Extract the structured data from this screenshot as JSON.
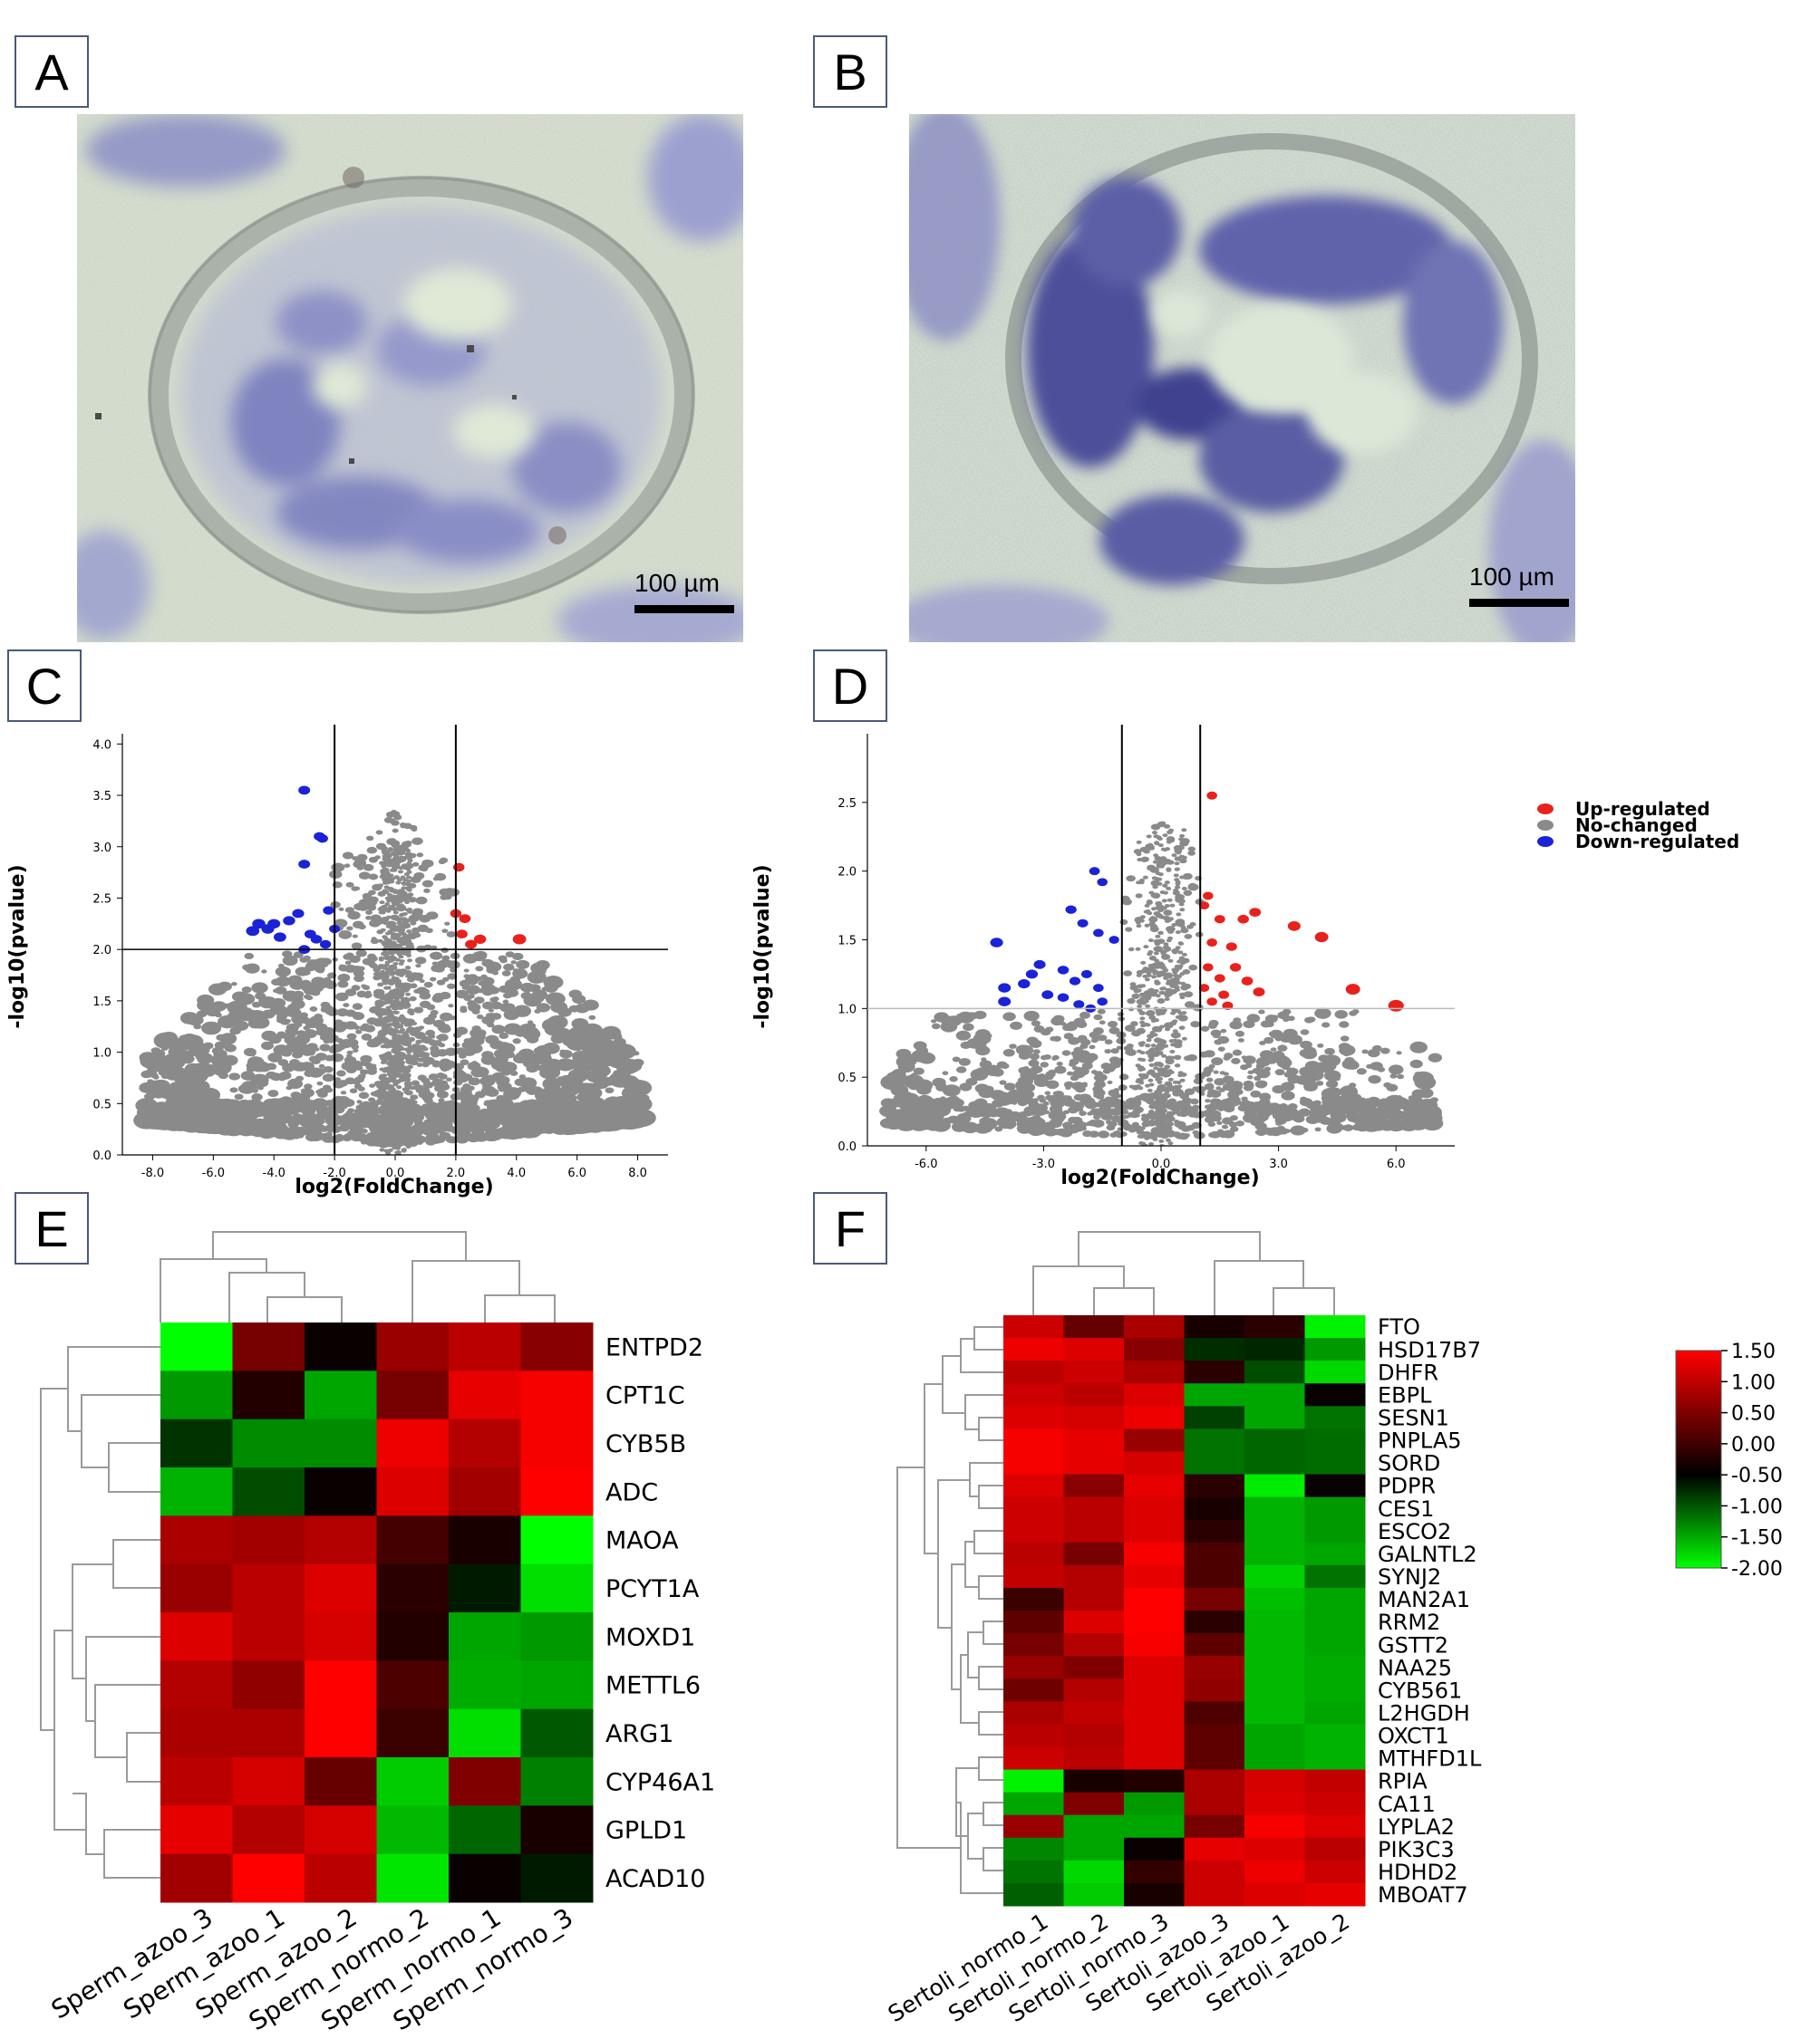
{
  "panels": {
    "A": {
      "label": "A",
      "scale_bar": "100 µm"
    },
    "B": {
      "label": "B",
      "scale_bar": "100 µm"
    },
    "C": {
      "label": "C"
    },
    "D": {
      "label": "D"
    },
    "E": {
      "label": "E"
    },
    "F": {
      "label": "F"
    }
  },
  "colors": {
    "up": "#e8211d",
    "nochange": "#8a8a8a",
    "down": "#1a23d6",
    "heat_high": "#ff0000",
    "heat_mid": "#000000",
    "heat_low": "#00ff00"
  },
  "chart_data": [
    {
      "id": "C",
      "type": "scatter",
      "xlabel": "log2(FoldChange)",
      "ylabel": "-log10(pvalue)",
      "xlim": [
        -9,
        9
      ],
      "ylim": [
        0,
        4.1
      ],
      "x_ticks": [
        -8,
        -6,
        -4,
        -2,
        0,
        2,
        4,
        6,
        8
      ],
      "x_tick_labels": [
        "-8.0",
        "-6.0",
        "-4.0",
        "-2.0",
        "0.0",
        "2.0",
        "4.0",
        "6.0",
        "8.0"
      ],
      "y_ticks": [
        0,
        0.5,
        1,
        1.5,
        2,
        2.5,
        3,
        3.5,
        4
      ],
      "y_tick_labels": [
        "0.0",
        "0.5",
        "1.0",
        "1.5",
        "2.0",
        "2.5",
        "3.0",
        "3.5",
        "4.0"
      ],
      "thresholds": {
        "x": [
          -2,
          2
        ],
        "y": 2.0
      },
      "up_points": [
        [
          2.1,
          2.8
        ],
        [
          2.0,
          2.35
        ],
        [
          2.3,
          2.3
        ],
        [
          2.8,
          2.1
        ],
        [
          2.5,
          2.05
        ],
        [
          4.1,
          2.1
        ],
        [
          2.2,
          2.15
        ]
      ],
      "down_points": [
        [
          -3.0,
          3.55
        ],
        [
          -2.5,
          3.1
        ],
        [
          -2.4,
          3.08
        ],
        [
          -3.0,
          2.83
        ],
        [
          -4.5,
          2.25
        ],
        [
          -4.7,
          2.18
        ],
        [
          -4.2,
          2.2
        ],
        [
          -3.8,
          2.12
        ],
        [
          -3.5,
          2.28
        ],
        [
          -3.2,
          2.35
        ],
        [
          -2.8,
          2.15
        ],
        [
          -2.2,
          2.38
        ],
        [
          -2.0,
          2.2
        ],
        [
          -3.0,
          2.0
        ],
        [
          -2.6,
          2.1
        ],
        [
          -2.3,
          2.05
        ],
        [
          -4.0,
          2.25
        ]
      ]
    },
    {
      "id": "D",
      "type": "scatter",
      "xlabel": "log2(FoldChange)",
      "ylabel": "-log10(pvalue)",
      "xlim": [
        -7.5,
        7.5
      ],
      "ylim": [
        0,
        3.0
      ],
      "x_ticks": [
        -6,
        -3,
        0,
        3,
        6
      ],
      "x_tick_labels": [
        "-6.0",
        "-3.0",
        "0.0",
        "3.0",
        "6.0"
      ],
      "y_ticks": [
        0,
        0.5,
        1,
        1.5,
        2,
        2.5
      ],
      "y_tick_labels": [
        "0.0",
        "0.5",
        "1.0",
        "1.5",
        "2.0",
        "2.5"
      ],
      "thresholds": {
        "x": [
          -1,
          1
        ],
        "y": 1.0
      },
      "legend": [
        "Up-regulated",
        "No-changed",
        "Down-regulated"
      ],
      "up_points": [
        [
          1.3,
          2.55
        ],
        [
          1.2,
          1.82
        ],
        [
          1.1,
          1.75
        ],
        [
          1.5,
          1.65
        ],
        [
          2.1,
          1.65
        ],
        [
          2.4,
          1.7
        ],
        [
          3.4,
          1.6
        ],
        [
          4.1,
          1.52
        ],
        [
          1.3,
          1.48
        ],
        [
          1.8,
          1.45
        ],
        [
          1.2,
          1.3
        ],
        [
          1.5,
          1.22
        ],
        [
          1.9,
          1.3
        ],
        [
          2.2,
          1.2
        ],
        [
          1.1,
          1.15
        ],
        [
          1.6,
          1.1
        ],
        [
          2.5,
          1.12
        ],
        [
          1.3,
          1.05
        ],
        [
          1.7,
          1.02
        ],
        [
          4.9,
          1.14
        ],
        [
          6.0,
          1.02
        ]
      ],
      "down_points": [
        [
          -1.7,
          2.0
        ],
        [
          -1.5,
          1.92
        ],
        [
          -2.3,
          1.72
        ],
        [
          -2.0,
          1.62
        ],
        [
          -1.6,
          1.55
        ],
        [
          -1.2,
          1.5
        ],
        [
          -4.2,
          1.48
        ],
        [
          -3.1,
          1.32
        ],
        [
          -2.5,
          1.28
        ],
        [
          -3.3,
          1.25
        ],
        [
          -1.9,
          1.25
        ],
        [
          -2.2,
          1.2
        ],
        [
          -3.5,
          1.18
        ],
        [
          -4.0,
          1.15
        ],
        [
          -1.6,
          1.15
        ],
        [
          -2.9,
          1.1
        ],
        [
          -2.5,
          1.08
        ],
        [
          -4.0,
          1.05
        ],
        [
          -2.1,
          1.03
        ],
        [
          -1.5,
          1.05
        ],
        [
          -1.8,
          1.0
        ]
      ]
    },
    {
      "id": "E",
      "type": "heatmap",
      "columns": [
        "Sperm_azoo_3",
        "Sperm_azoo_1",
        "Sperm_azoo_2",
        "Sperm_normo_2",
        "Sperm_normo_1",
        "Sperm_normo_3"
      ],
      "rows": [
        "ENTPD2",
        "CPT1C",
        "CYB5B",
        "ADC",
        "MAOA",
        "PCYT1A",
        "MOXD1",
        "METTL6",
        "ARG1",
        "CYP46A1",
        "GPLD1",
        "ACAD10"
      ],
      "values": [
        [
          -2.0,
          0.7,
          0.05,
          0.9,
          1.1,
          0.8
        ],
        [
          -1.2,
          0.2,
          -1.3,
          0.7,
          1.35,
          1.45
        ],
        [
          -0.4,
          -1.1,
          -1.1,
          1.4,
          1.05,
          1.45
        ],
        [
          -1.4,
          -0.6,
          0.05,
          1.3,
          0.95,
          1.5
        ],
        [
          1.0,
          0.95,
          1.05,
          0.4,
          0.15,
          -2.0
        ],
        [
          0.9,
          1.1,
          1.3,
          0.25,
          -0.2,
          -1.75
        ],
        [
          1.3,
          1.1,
          1.25,
          0.2,
          -1.3,
          -1.2
        ],
        [
          1.05,
          0.85,
          1.5,
          0.45,
          -1.35,
          -1.3
        ],
        [
          1.0,
          1.0,
          1.5,
          0.35,
          -1.75,
          -0.7
        ],
        [
          1.1,
          1.25,
          0.6,
          -1.6,
          0.75,
          -1.0
        ],
        [
          1.35,
          1.05,
          1.25,
          -1.45,
          -0.8,
          0.15
        ],
        [
          0.95,
          1.55,
          1.1,
          -1.8,
          0.05,
          -0.2
        ]
      ]
    },
    {
      "id": "F",
      "type": "heatmap",
      "columns": [
        "Sertoli_normo_1",
        "Sertoli_normo_2",
        "Sertoli_normo_3",
        "Sertoli_azoo_3",
        "Sertoli_azoo_1",
        "Sertoli_azoo_2"
      ],
      "rows": [
        "FTO",
        "HSD17B7",
        "DHFR",
        "EBPL",
        "SESN1",
        "PNPLA5",
        "SORD",
        "PDPR",
        "CES1",
        "ESCO2",
        "GALNTL2",
        "SYNJ2",
        "MAN2A1",
        "RRM2",
        "GSTT2",
        "NAA25",
        "CYB561",
        "L2HGDH",
        "OXCT1",
        "MTHFD1L",
        "RPIA",
        "CA11",
        "LYPLA2",
        "PIK3C3",
        "HDHD2",
        "MBOAT7"
      ],
      "values": [
        [
          1.2,
          0.6,
          1.0,
          0.15,
          0.25,
          -1.9
        ],
        [
          1.4,
          1.3,
          0.8,
          -0.35,
          -0.3,
          -1.2
        ],
        [
          1.1,
          1.2,
          1.0,
          0.25,
          -0.6,
          -1.7
        ],
        [
          1.2,
          1.1,
          1.3,
          -1.3,
          -1.3,
          0.05
        ],
        [
          1.3,
          1.25,
          1.4,
          -0.5,
          -1.3,
          -0.9
        ],
        [
          1.45,
          1.35,
          0.9,
          -0.9,
          -0.8,
          -0.85
        ],
        [
          1.45,
          1.35,
          1.25,
          -0.9,
          -0.8,
          -0.85
        ],
        [
          1.3,
          0.8,
          1.35,
          0.25,
          -1.85,
          0.05
        ],
        [
          1.2,
          1.1,
          1.3,
          0.15,
          -1.4,
          -1.2
        ],
        [
          1.2,
          1.1,
          1.3,
          0.25,
          -1.4,
          -1.2
        ],
        [
          1.1,
          0.7,
          1.45,
          0.45,
          -1.4,
          -1.3
        ],
        [
          1.15,
          1.05,
          1.35,
          0.45,
          -1.65,
          -0.9
        ],
        [
          0.35,
          1.05,
          1.5,
          0.7,
          -1.5,
          -1.3
        ],
        [
          0.55,
          1.3,
          1.55,
          0.25,
          -1.45,
          -1.3
        ],
        [
          0.7,
          1.05,
          1.45,
          0.55,
          -1.45,
          -1.3
        ],
        [
          0.9,
          0.75,
          1.3,
          0.9,
          -1.45,
          -1.35
        ],
        [
          0.65,
          1.05,
          1.3,
          0.85,
          -1.45,
          -1.35
        ],
        [
          1.0,
          1.15,
          1.3,
          0.45,
          -1.45,
          -1.3
        ],
        [
          1.1,
          1.05,
          1.3,
          0.55,
          -1.3,
          -1.4
        ],
        [
          1.2,
          1.1,
          1.3,
          0.55,
          -1.3,
          -1.4
        ],
        [
          -1.9,
          0.15,
          0.2,
          1.0,
          1.25,
          1.15
        ],
        [
          -1.3,
          0.75,
          -1.2,
          1.0,
          1.3,
          1.2
        ],
        [
          0.9,
          -1.3,
          -1.3,
          0.7,
          1.45,
          1.3
        ],
        [
          -1.05,
          -1.3,
          0.05,
          1.35,
          1.3,
          1.1
        ],
        [
          -0.9,
          -1.7,
          0.3,
          1.2,
          1.4,
          1.2
        ],
        [
          -0.75,
          -1.6,
          0.15,
          1.2,
          1.3,
          1.35
        ]
      ]
    }
  ],
  "colorbar": {
    "ticks": [
      "1.50",
      "1.00",
      "0.50",
      "0.00",
      "-0.50",
      "-1.00",
      "-1.50",
      "-2.00"
    ]
  }
}
